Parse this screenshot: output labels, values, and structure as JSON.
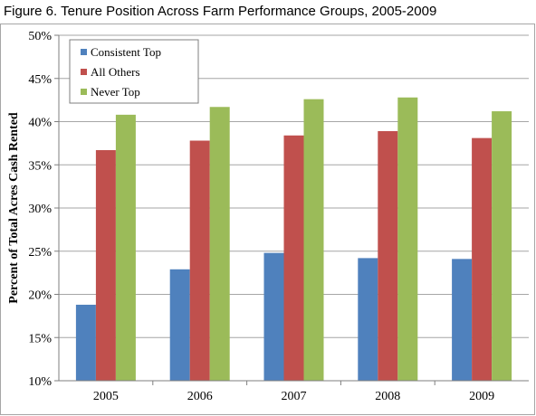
{
  "figure": {
    "title": "Figure 6. Tenure Position Across Farm Performance Groups, 2005-2009"
  },
  "chart_data": {
    "type": "bar",
    "categories": [
      "2005",
      "2006",
      "2007",
      "2008",
      "2009"
    ],
    "series": [
      {
        "name": "Consistent Top",
        "color": "#4f81bd",
        "values": [
          18.8,
          22.9,
          24.8,
          24.2,
          24.1
        ]
      },
      {
        "name": "All Others",
        "color": "#c0504d",
        "values": [
          36.7,
          37.8,
          38.4,
          38.9,
          38.1
        ]
      },
      {
        "name": "Never Top",
        "color": "#9bbb59",
        "values": [
          40.8,
          41.7,
          42.6,
          42.8,
          41.2
        ]
      }
    ],
    "ylabel": "Percent of Total Acres Cash Rented",
    "xlabel": "",
    "ylim": [
      10,
      50
    ],
    "yticks": [
      10,
      15,
      20,
      25,
      30,
      35,
      40,
      45,
      50
    ],
    "ytick_format": "percent",
    "grid": true,
    "legend_position": "top-left"
  }
}
